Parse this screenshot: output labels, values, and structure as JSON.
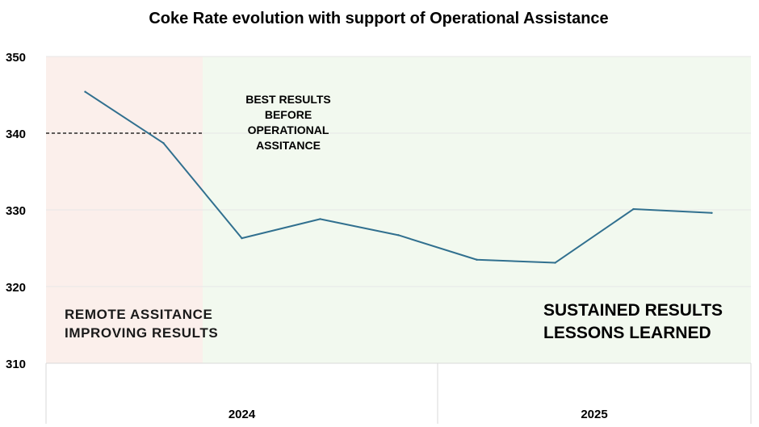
{
  "chart_data": {
    "type": "line",
    "title": "Coke Rate evolution with support of Operational Assistance",
    "xlabel": "",
    "ylabel": "",
    "ylim": [
      310,
      350
    ],
    "yticks": [
      310,
      320,
      330,
      340,
      350
    ],
    "grid": true,
    "legend": "none",
    "x": [
      1,
      2,
      3,
      4,
      5,
      6,
      7,
      8,
      9
    ],
    "x_groups": [
      {
        "label": "2024",
        "from": 1,
        "to": 5
      },
      {
        "label": "2025",
        "from": 6,
        "to": 9
      }
    ],
    "series": [
      {
        "values": [
          345.4,
          338.7,
          326.3,
          328.8,
          326.7,
          323.5,
          323.1,
          330.1,
          329.6
        ],
        "color": "#31708f"
      }
    ],
    "reference_line": {
      "y": 340,
      "from_x": 0.5,
      "to_x": 2.5,
      "style": "dashed",
      "label_lines": [
        "BEST RESULTS",
        "BEFORE",
        "OPERATIONAL",
        "ASSITANCE"
      ]
    },
    "bands": [
      {
        "from_x": 0.5,
        "to_x": 2.5,
        "color": "#fbefeb",
        "label_lines": [
          "REMOTE ASSITANCE",
          "IMPROVING RESULTS"
        ]
      },
      {
        "from_x": 2.5,
        "to_x": 9.5,
        "color": "#f2f9ef",
        "label_lines": [
          "SUSTAINED RESULTS",
          "LESSONS LEARNED"
        ]
      }
    ],
    "colors": {
      "line": "#31708f",
      "grid": "#e7e7e7",
      "axis_border": "#d9d9d9",
      "band_remote": "#fbefeb",
      "band_sustained": "#f2f9ef"
    }
  }
}
